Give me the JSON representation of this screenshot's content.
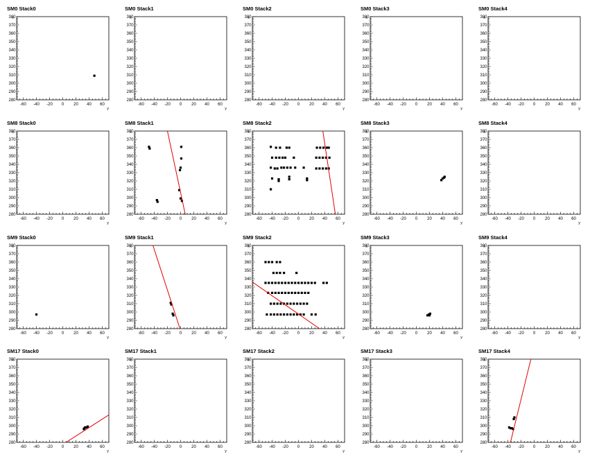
{
  "chart_data": [
    {
      "title": "SM0 Stack0",
      "type": "scatter",
      "xlabel": "y",
      "ylabel": "x",
      "xlim": [
        -70,
        70
      ],
      "ylim": [
        280,
        380
      ],
      "xticks": [
        -60,
        -40,
        -20,
        0,
        20,
        40,
        60
      ],
      "yticks": [
        280,
        290,
        300,
        310,
        320,
        330,
        340,
        350,
        360,
        370,
        380
      ],
      "points": [
        [
          48,
          309
        ]
      ],
      "fit": []
    },
    {
      "title": "SM0 Stack1",
      "type": "scatter",
      "xlabel": "y",
      "ylabel": "x",
      "xlim": [
        -70,
        70
      ],
      "ylim": [
        280,
        380
      ],
      "xticks": [
        -60,
        -40,
        -20,
        0,
        20,
        40,
        60
      ],
      "yticks": [
        280,
        290,
        300,
        310,
        320,
        330,
        340,
        350,
        360,
        370,
        380
      ],
      "points": [],
      "fit": []
    },
    {
      "title": "SM0 Stack2",
      "type": "scatter",
      "xlabel": "y",
      "ylabel": "x",
      "xlim": [
        -70,
        70
      ],
      "ylim": [
        280,
        380
      ],
      "xticks": [
        -60,
        -40,
        -20,
        0,
        20,
        40,
        60
      ],
      "yticks": [
        280,
        290,
        300,
        310,
        320,
        330,
        340,
        350,
        360,
        370,
        380
      ],
      "points": [],
      "fit": []
    },
    {
      "title": "SM0 Stack3",
      "type": "scatter",
      "xlabel": "y",
      "ylabel": "x",
      "xlim": [
        -70,
        70
      ],
      "ylim": [
        280,
        380
      ],
      "xticks": [
        -60,
        -40,
        -20,
        0,
        20,
        40,
        60
      ],
      "yticks": [
        280,
        290,
        300,
        310,
        320,
        330,
        340,
        350,
        360,
        370,
        380
      ],
      "points": [],
      "fit": []
    },
    {
      "title": "SM0 Stack4",
      "type": "scatter",
      "xlabel": "y",
      "ylabel": "x",
      "xlim": [
        -70,
        70
      ],
      "ylim": [
        280,
        380
      ],
      "xticks": [
        -60,
        -40,
        -20,
        0,
        20,
        40,
        60
      ],
      "yticks": [
        280,
        290,
        300,
        310,
        320,
        330,
        340,
        350,
        360,
        370,
        380
      ],
      "points": [],
      "fit": []
    },
    {
      "title": "SM8 Stack0",
      "type": "scatter",
      "xlabel": "y",
      "ylabel": "x",
      "xlim": [
        -70,
        70
      ],
      "ylim": [
        280,
        380
      ],
      "xticks": [
        -60,
        -40,
        -20,
        0,
        20,
        40,
        60
      ],
      "yticks": [
        280,
        290,
        300,
        310,
        320,
        330,
        340,
        350,
        360,
        370,
        380
      ],
      "points": [],
      "fit": []
    },
    {
      "title": "SM8 Stack1",
      "type": "scatter",
      "xlabel": "y",
      "ylabel": "x",
      "xlim": [
        -70,
        70
      ],
      "ylim": [
        280,
        380
      ],
      "xticks": [
        -60,
        -40,
        -20,
        0,
        20,
        40,
        60
      ],
      "yticks": [
        280,
        290,
        300,
        310,
        320,
        330,
        340,
        350,
        360,
        370,
        380
      ],
      "points": [
        [
          -48,
          361
        ],
        [
          -47,
          359
        ],
        [
          1,
          361
        ],
        [
          1,
          347
        ],
        [
          0,
          336
        ],
        [
          -1,
          333
        ],
        [
          -36,
          297
        ],
        [
          -35,
          295
        ],
        [
          -2,
          309
        ],
        [
          0,
          299
        ],
        [
          2,
          296
        ]
      ],
      "fit": [
        [
          -20,
          380
        ],
        [
          7,
          280
        ]
      ]
    },
    {
      "title": "SM8 Stack2",
      "type": "scatter",
      "xlabel": "y",
      "ylabel": "x",
      "xlim": [
        -70,
        70
      ],
      "ylim": [
        280,
        380
      ],
      "xticks": [
        -60,
        -40,
        -20,
        0,
        20,
        40,
        60
      ],
      "yticks": [
        280,
        290,
        300,
        310,
        320,
        330,
        340,
        350,
        360,
        370,
        380
      ],
      "points": [
        [
          -42,
          361
        ],
        [
          -34,
          360
        ],
        [
          -28,
          360
        ],
        [
          -18,
          360
        ],
        [
          -14,
          360
        ],
        [
          28,
          360
        ],
        [
          33,
          360
        ],
        [
          38,
          360
        ],
        [
          43,
          360
        ],
        [
          46,
          360
        ],
        [
          -40,
          348
        ],
        [
          -34,
          348
        ],
        [
          -29,
          348
        ],
        [
          -24,
          348
        ],
        [
          -20,
          348
        ],
        [
          -7,
          348
        ],
        [
          27,
          348
        ],
        [
          32,
          348
        ],
        [
          37,
          348
        ],
        [
          42,
          348
        ],
        [
          47,
          348
        ],
        [
          -42,
          336
        ],
        [
          -36,
          335
        ],
        [
          -32,
          335
        ],
        [
          -26,
          336
        ],
        [
          -22,
          336
        ],
        [
          -17,
          336
        ],
        [
          -12,
          336
        ],
        [
          -5,
          336
        ],
        [
          8,
          336
        ],
        [
          27,
          335
        ],
        [
          32,
          335
        ],
        [
          37,
          335
        ],
        [
          42,
          335
        ],
        [
          46,
          335
        ],
        [
          -40,
          323
        ],
        [
          -30,
          322
        ],
        [
          -14,
          322
        ],
        [
          13,
          323
        ],
        [
          -42,
          310
        ],
        [
          -30,
          320
        ],
        [
          -14,
          325
        ],
        [
          13,
          321
        ]
      ],
      "fit": [
        [
          37,
          380
        ],
        [
          56,
          280
        ]
      ]
    },
    {
      "title": "SM8 Stack3",
      "type": "scatter",
      "xlabel": "y",
      "ylabel": "x",
      "xlim": [
        -70,
        70
      ],
      "ylim": [
        280,
        380
      ],
      "xticks": [
        -60,
        -40,
        -20,
        0,
        20,
        40,
        60
      ],
      "yticks": [
        280,
        290,
        300,
        310,
        320,
        330,
        340,
        350,
        360,
        370,
        380
      ],
      "points": [
        [
          38,
          321
        ],
        [
          40,
          323
        ],
        [
          42,
          324
        ],
        [
          43,
          325
        ]
      ],
      "fit": []
    },
    {
      "title": "SM8 Stack4",
      "type": "scatter",
      "xlabel": "y",
      "ylabel": "x",
      "xlim": [
        -70,
        70
      ],
      "ylim": [
        280,
        380
      ],
      "xticks": [
        -60,
        -40,
        -20,
        0,
        20,
        40,
        60
      ],
      "yticks": [
        280,
        290,
        300,
        310,
        320,
        330,
        340,
        350,
        360,
        370,
        380
      ],
      "points": [],
      "fit": []
    },
    {
      "title": "SM9 Stack0",
      "type": "scatter",
      "xlabel": "y",
      "ylabel": "x",
      "xlim": [
        -70,
        70
      ],
      "ylim": [
        280,
        380
      ],
      "xticks": [
        -60,
        -40,
        -20,
        0,
        20,
        40,
        60
      ],
      "yticks": [
        280,
        290,
        300,
        310,
        320,
        330,
        340,
        350,
        360,
        370,
        380
      ],
      "points": [
        [
          -40,
          297
        ]
      ],
      "fit": []
    },
    {
      "title": "SM9 Stack1",
      "type": "scatter",
      "xlabel": "y",
      "ylabel": "x",
      "xlim": [
        -70,
        70
      ],
      "ylim": [
        280,
        380
      ],
      "xticks": [
        -60,
        -40,
        -20,
        0,
        20,
        40,
        60
      ],
      "yticks": [
        280,
        290,
        300,
        310,
        320,
        330,
        340,
        350,
        360,
        370,
        380
      ],
      "points": [
        [
          -15,
          311
        ],
        [
          -14,
          309
        ],
        [
          -12,
          298
        ],
        [
          -11,
          296
        ]
      ],
      "fit": [
        [
          -42,
          380
        ],
        [
          -1,
          280
        ]
      ]
    },
    {
      "title": "SM9 Stack2",
      "type": "scatter",
      "xlabel": "y",
      "ylabel": "x",
      "xlim": [
        -70,
        70
      ],
      "ylim": [
        280,
        380
      ],
      "xticks": [
        -60,
        -40,
        -20,
        0,
        20,
        40,
        60
      ],
      "yticks": [
        280,
        290,
        300,
        310,
        320,
        330,
        340,
        350,
        360,
        370,
        380
      ],
      "points": [
        [
          -50,
          360
        ],
        [
          -45,
          360
        ],
        [
          -40,
          360
        ],
        [
          -33,
          360
        ],
        [
          -28,
          360
        ],
        [
          -38,
          347
        ],
        [
          -33,
          347
        ],
        [
          -28,
          347
        ],
        [
          -22,
          347
        ],
        [
          -3,
          347
        ],
        [
          -50,
          335
        ],
        [
          -45,
          335
        ],
        [
          -40,
          335
        ],
        [
          -35,
          335
        ],
        [
          -30,
          335
        ],
        [
          -25,
          335
        ],
        [
          -20,
          335
        ],
        [
          -15,
          335
        ],
        [
          -10,
          335
        ],
        [
          -5,
          335
        ],
        [
          0,
          335
        ],
        [
          5,
          335
        ],
        [
          10,
          335
        ],
        [
          15,
          335
        ],
        [
          20,
          335
        ],
        [
          25,
          335
        ],
        [
          38,
          335
        ],
        [
          43,
          335
        ],
        [
          -46,
          323
        ],
        [
          -40,
          323
        ],
        [
          -35,
          323
        ],
        [
          -30,
          323
        ],
        [
          -25,
          323
        ],
        [
          -20,
          323
        ],
        [
          -15,
          323
        ],
        [
          -10,
          323
        ],
        [
          -5,
          323
        ],
        [
          0,
          323
        ],
        [
          5,
          323
        ],
        [
          10,
          323
        ],
        [
          15,
          323
        ],
        [
          -42,
          310
        ],
        [
          -37,
          310
        ],
        [
          -32,
          310
        ],
        [
          -27,
          310
        ],
        [
          -22,
          310
        ],
        [
          -17,
          310
        ],
        [
          -12,
          310
        ],
        [
          -7,
          310
        ],
        [
          -2,
          310
        ],
        [
          3,
          310
        ],
        [
          8,
          310
        ],
        [
          13,
          310
        ],
        [
          -48,
          297
        ],
        [
          -42,
          297
        ],
        [
          -37,
          297
        ],
        [
          -32,
          297
        ],
        [
          -27,
          297
        ],
        [
          -22,
          297
        ],
        [
          -17,
          297
        ],
        [
          -12,
          297
        ],
        [
          -7,
          297
        ],
        [
          -2,
          297
        ],
        [
          3,
          297
        ],
        [
          8,
          297
        ],
        [
          20,
          297
        ],
        [
          26,
          297
        ]
      ],
      "fit": [
        [
          -70,
          336
        ],
        [
          32,
          280
        ]
      ]
    },
    {
      "title": "SM9 Stack3",
      "type": "scatter",
      "xlabel": "y",
      "ylabel": "x",
      "xlim": [
        -70,
        70
      ],
      "ylim": [
        280,
        380
      ],
      "xticks": [
        -60,
        -40,
        -20,
        0,
        20,
        40,
        60
      ],
      "yticks": [
        280,
        290,
        300,
        310,
        320,
        330,
        340,
        350,
        360,
        370,
        380
      ],
      "points": [
        [
          17,
          296
        ],
        [
          19,
          297
        ],
        [
          21,
          298
        ],
        [
          20,
          296
        ]
      ],
      "fit": []
    },
    {
      "title": "SM9 Stack4",
      "type": "scatter",
      "xlabel": "y",
      "ylabel": "x",
      "xlim": [
        -70,
        70
      ],
      "ylim": [
        280,
        380
      ],
      "xticks": [
        -60,
        -40,
        -20,
        0,
        20,
        40,
        60
      ],
      "yticks": [
        280,
        290,
        300,
        310,
        320,
        330,
        340,
        350,
        360,
        370,
        380
      ],
      "points": [],
      "fit": []
    },
    {
      "title": "SM17 Stack0",
      "type": "scatter",
      "xlabel": "y",
      "ylabel": "x",
      "xlim": [
        -70,
        70
      ],
      "ylim": [
        280,
        380
      ],
      "xticks": [
        -60,
        -40,
        -20,
        0,
        20,
        40,
        60
      ],
      "yticks": [
        280,
        290,
        300,
        310,
        320,
        330,
        340,
        350,
        360,
        370,
        380
      ],
      "points": [
        [
          32,
          296
        ],
        [
          34,
          298
        ],
        [
          36,
          298
        ],
        [
          38,
          299
        ],
        [
          33,
          297
        ]
      ],
      "fit": [
        [
          5,
          280
        ],
        [
          70,
          313
        ]
      ]
    },
    {
      "title": "SM17 Stack1",
      "type": "scatter",
      "xlabel": "y",
      "ylabel": "x",
      "xlim": [
        -70,
        70
      ],
      "ylim": [
        280,
        380
      ],
      "xticks": [
        -60,
        -40,
        -20,
        0,
        20,
        40,
        60
      ],
      "yticks": [
        280,
        290,
        300,
        310,
        320,
        330,
        340,
        350,
        360,
        370,
        380
      ],
      "points": [],
      "fit": []
    },
    {
      "title": "SM17 Stack2",
      "type": "scatter",
      "xlabel": "y",
      "ylabel": "x",
      "xlim": [
        -70,
        70
      ],
      "ylim": [
        280,
        380
      ],
      "xticks": [
        -60,
        -40,
        -20,
        0,
        20,
        40,
        60
      ],
      "yticks": [
        280,
        290,
        300,
        310,
        320,
        330,
        340,
        350,
        360,
        370,
        380
      ],
      "points": [],
      "fit": []
    },
    {
      "title": "SM17 Stack3",
      "type": "scatter",
      "xlabel": "y",
      "ylabel": "x",
      "xlim": [
        -70,
        70
      ],
      "ylim": [
        280,
        380
      ],
      "xticks": [
        -60,
        -40,
        -20,
        0,
        20,
        40,
        60
      ],
      "yticks": [
        280,
        290,
        300,
        310,
        320,
        330,
        340,
        350,
        360,
        370,
        380
      ],
      "points": [],
      "fit": []
    },
    {
      "title": "SM17 Stack4",
      "type": "scatter",
      "xlabel": "y",
      "ylabel": "x",
      "xlim": [
        -70,
        70
      ],
      "ylim": [
        280,
        380
      ],
      "xticks": [
        -60,
        -40,
        -20,
        0,
        20,
        40,
        60
      ],
      "yticks": [
        280,
        290,
        300,
        310,
        320,
        330,
        340,
        350,
        360,
        370,
        380
      ],
      "points": [
        [
          -38,
          298
        ],
        [
          -36,
          297
        ],
        [
          -34,
          297
        ],
        [
          -32,
          296
        ],
        [
          -30,
          310
        ],
        [
          -31,
          308
        ]
      ],
      "fit": [
        [
          -36,
          280
        ],
        [
          -5,
          380
        ]
      ]
    }
  ],
  "colors": {
    "points": "#000000",
    "fit": "#e00000",
    "frame": "#000000",
    "background": "#ffffff"
  }
}
